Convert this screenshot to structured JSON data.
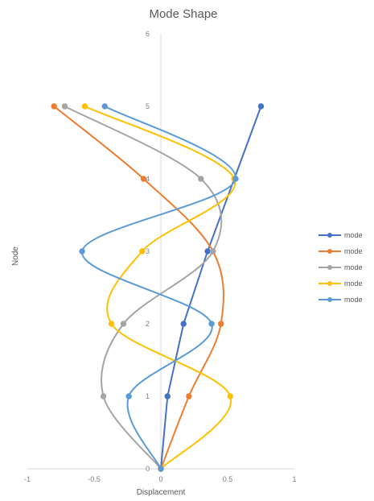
{
  "chart_data": {
    "type": "scatter",
    "subtype": "smoothed-lines-with-markers",
    "title": "Mode Shape",
    "xlabel": "Displacement",
    "ylabel": "Node",
    "xlim": [
      -1,
      1
    ],
    "ylim": [
      0,
      6
    ],
    "x_ticks": [
      "-1",
      "-0.5",
      "0",
      "0.5",
      "1"
    ],
    "y_ticks": [
      "0",
      "1",
      "2",
      "3",
      "4",
      "5",
      "6"
    ],
    "grid": false,
    "legend_position": "right",
    "series": [
      {
        "name": "mode",
        "color": "#4472C4",
        "x": [
          0,
          0.05,
          0.17,
          0.35,
          0.55,
          0.75
        ],
        "y": [
          0,
          1,
          2,
          3,
          4,
          5
        ]
      },
      {
        "name": "mode",
        "color": "#ED7D31",
        "x": [
          0,
          0.21,
          0.45,
          0.39,
          -0.13,
          -0.8
        ],
        "y": [
          0,
          1,
          2,
          3,
          4,
          5
        ]
      },
      {
        "name": "mode",
        "color": "#A5A5A5",
        "x": [
          0,
          -0.43,
          -0.28,
          0.39,
          0.3,
          -0.72
        ],
        "y": [
          0,
          1,
          2,
          3,
          4,
          5
        ]
      },
      {
        "name": "mode",
        "color": "#FFC000",
        "x": [
          0,
          0.52,
          -0.37,
          -0.14,
          0.55,
          -0.57
        ],
        "y": [
          0,
          1,
          2,
          3,
          4,
          5
        ]
      },
      {
        "name": "mode",
        "color": "#5B9BD5",
        "x": [
          0,
          -0.24,
          0.38,
          -0.59,
          0.56,
          -0.42
        ],
        "y": [
          0,
          1,
          2,
          3,
          4,
          5
        ]
      }
    ]
  }
}
